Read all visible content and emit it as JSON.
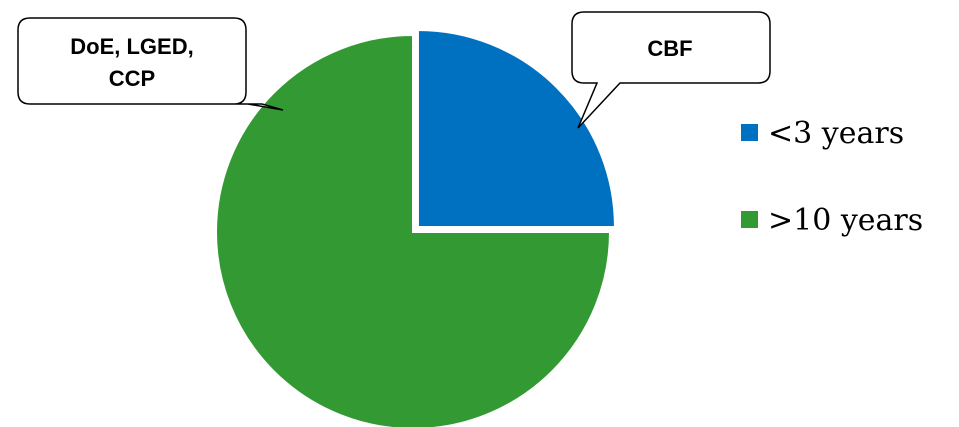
{
  "chart_data": {
    "type": "pie",
    "title": "",
    "slices": [
      {
        "name": "<3 years",
        "value": 25,
        "color": "#0070C0",
        "exploded": true,
        "callout": [
          "CBF"
        ]
      },
      {
        "name": ">10 years",
        "value": 75,
        "color": "#339933",
        "exploded": false,
        "callout": [
          "DoE, LGED,",
          "CCP"
        ]
      }
    ],
    "legend": {
      "position": "right",
      "entries": [
        "<3 years",
        ">10 years"
      ]
    }
  }
}
